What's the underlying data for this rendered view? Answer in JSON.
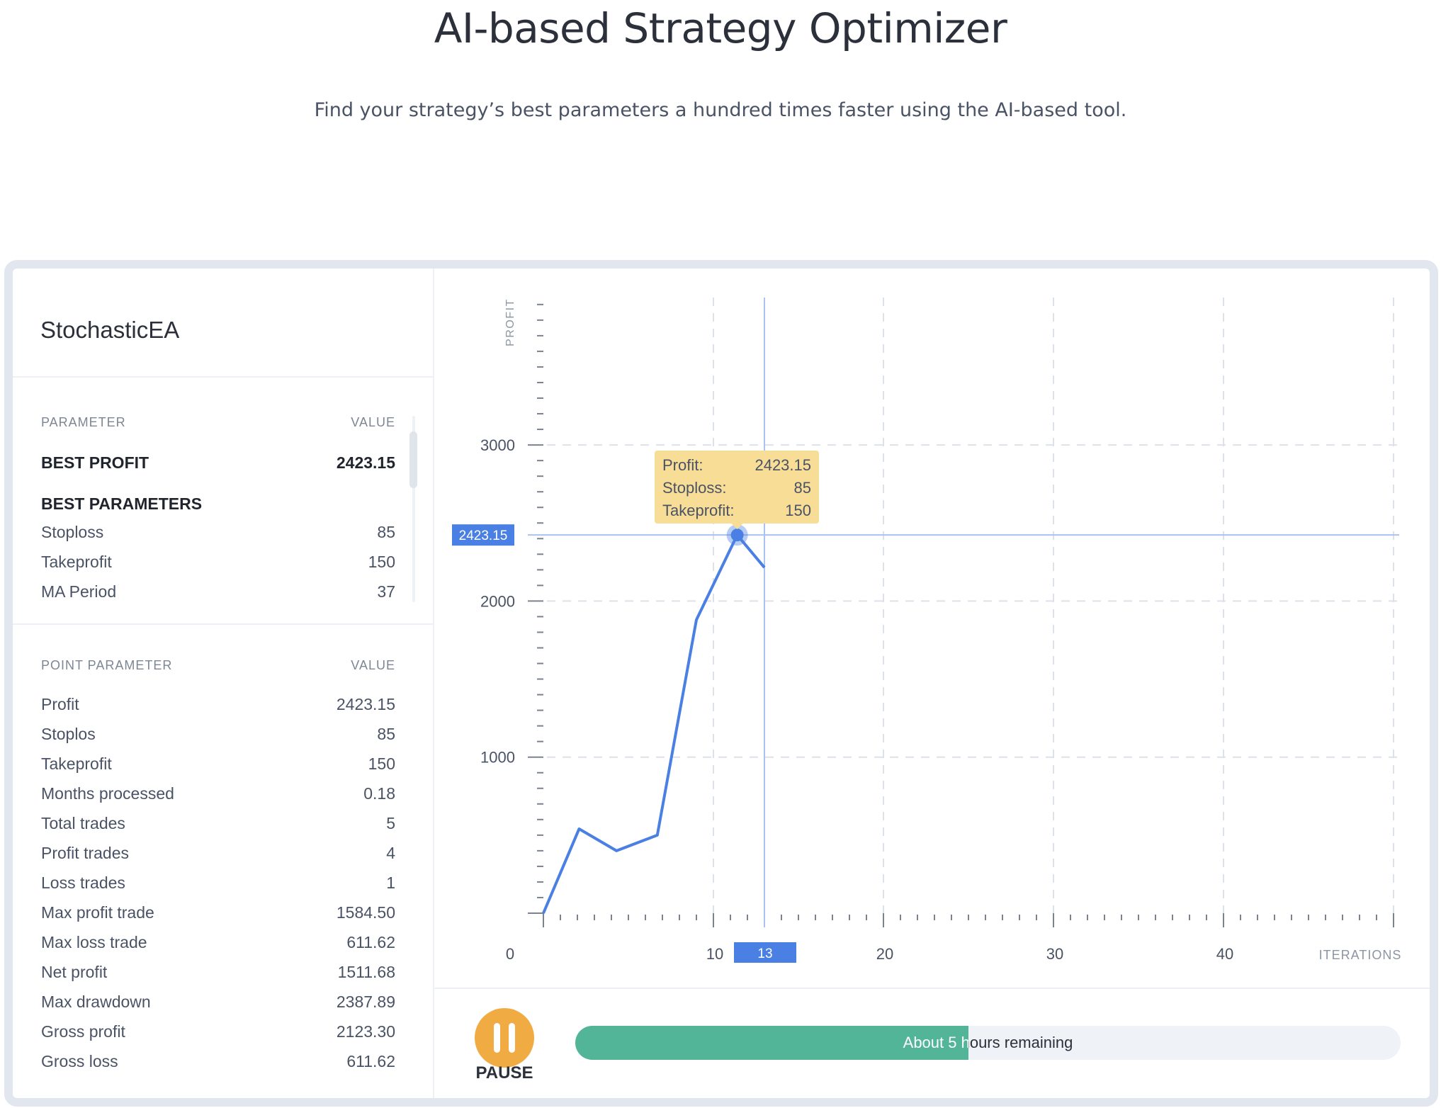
{
  "header": {
    "title": "AI-based Strategy Optimizer",
    "subtitle": "Find your strategy’s best parameters a hundred times faster using the AI-based tool."
  },
  "strategy": {
    "name": "StochasticEA"
  },
  "best_section": {
    "col_parameter": "PARAMETER",
    "col_value": "VALUE",
    "best_profit_label": "BEST PROFIT",
    "best_profit_value": "2423.15",
    "best_parameters_label": "BEST PARAMETERS",
    "params": [
      {
        "label": "Stoploss",
        "value": "85"
      },
      {
        "label": "Takeprofit",
        "value": "150"
      },
      {
        "label": "MA Period",
        "value": "37"
      }
    ]
  },
  "point_section": {
    "col_parameter": "POINT PARAMETER",
    "col_value": "VALUE",
    "rows": [
      {
        "label": "Profit",
        "value": "2423.15"
      },
      {
        "label": "Stoplos",
        "value": "85"
      },
      {
        "label": "Takeprofit",
        "value": "150"
      },
      {
        "label": "Months processed",
        "value": "0.18"
      },
      {
        "label": "Total trades",
        "value": "5"
      },
      {
        "label": "Profit trades",
        "value": "4"
      },
      {
        "label": "Loss trades",
        "value": "1"
      },
      {
        "label": "Max profit trade",
        "value": "1584.50"
      },
      {
        "label": "Max loss trade",
        "value": "611.62"
      },
      {
        "label": "Net profit",
        "value": "1511.68"
      },
      {
        "label": "Max drawdown",
        "value": "2387.89"
      },
      {
        "label": "Gross profit",
        "value": "2123.30"
      },
      {
        "label": "Gross loss",
        "value": "611.62"
      }
    ]
  },
  "tooltip": {
    "rows": [
      {
        "label": "Profit:",
        "value": "2423.15"
      },
      {
        "label": "Stoploss:",
        "value": "85"
      },
      {
        "label": "Takeprofit:",
        "value": "150"
      }
    ],
    "y_marker": "2423.15",
    "x_marker": "13"
  },
  "controls": {
    "pause_label": "PAUSE",
    "progress_text": "About 5 hours remaining",
    "progress_percent": 47.6
  },
  "colors": {
    "line": "#4a7fe3",
    "crosshair": "#a9c3f2",
    "tooltip_bg": "#f8dd97",
    "marker_bg": "#4a7fe3",
    "pause": "#f0ab43",
    "progress": "#52b597",
    "grid": "#dde2ea",
    "axis": "#7b8290"
  },
  "chart_data": {
    "type": "line",
    "title": "",
    "xlabel": "ITERATIONS",
    "ylabel": "PROFIT",
    "xlim": [
      0,
      50
    ],
    "ylim": [
      0,
      3900
    ],
    "x_ticks": [
      0,
      10,
      20,
      30,
      40
    ],
    "y_ticks": [
      1000,
      2000,
      3000
    ],
    "grid": true,
    "series": [
      {
        "name": "Profit",
        "x": [
          0,
          2.1,
          4.3,
          6.7,
          9.0,
          11.4,
          13
        ],
        "values": [
          0,
          540,
          400,
          500,
          1880,
          2423.15,
          2215
        ]
      }
    ],
    "highlight": {
      "x": 11.4,
      "y": 2423.15,
      "crosshair_x": 13
    }
  }
}
